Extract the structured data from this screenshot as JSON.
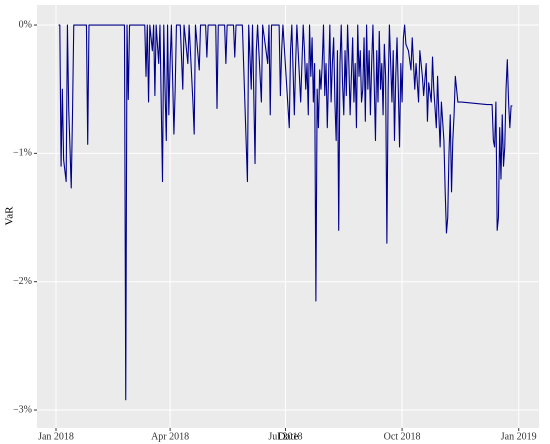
{
  "chart_data": {
    "type": "line",
    "x_label": "Date",
    "y_label": "VaR",
    "color": "#00008b",
    "grid": true,
    "xlim": [
      -15,
      381
    ],
    "xticks": [
      {
        "value": 0,
        "label": "Jan 2018"
      },
      {
        "value": 90,
        "label": "Apr 2018"
      },
      {
        "value": 181,
        "label": "Jul 2018"
      },
      {
        "value": 273,
        "label": "Oct 2018"
      },
      {
        "value": 365,
        "label": "Jan 2019"
      }
    ],
    "ylim": [
      -3.14,
      0.156
    ],
    "yticks": [
      {
        "value": -3,
        "label": "−3%"
      },
      {
        "value": -2,
        "label": "−2%"
      },
      {
        "value": -1,
        "label": "−1%"
      },
      {
        "value": 0,
        "label": "0%"
      }
    ],
    "x": [
      2,
      3,
      4,
      5,
      6,
      8,
      9,
      10,
      11,
      12,
      13,
      14,
      15,
      16,
      19,
      21,
      24,
      25,
      26,
      29,
      36,
      43,
      50,
      54,
      55,
      56,
      57,
      58,
      63,
      70,
      71,
      72,
      73,
      74,
      76,
      77,
      78,
      79,
      81,
      82,
      84,
      85,
      86,
      87,
      88,
      89,
      90,
      91,
      93,
      94,
      95,
      98,
      100,
      101,
      104,
      105,
      108,
      109,
      110,
      113,
      114,
      118,
      119,
      120,
      126,
      127,
      128,
      133,
      134,
      135,
      140,
      141,
      142,
      147,
      151,
      152,
      154,
      155,
      157,
      158,
      159,
      162,
      163,
      167,
      168,
      169,
      170,
      176,
      177,
      178,
      179,
      184,
      185,
      186,
      188,
      189,
      190,
      192,
      193,
      194,
      195,
      196,
      197,
      198,
      199,
      200,
      201,
      202,
      203,
      204,
      205,
      206,
      207,
      208,
      209,
      210,
      211,
      212,
      213,
      214,
      215,
      216,
      217,
      218,
      219,
      220,
      221,
      222,
      223,
      224,
      225,
      226,
      227,
      228,
      229,
      230,
      231,
      232,
      233,
      234,
      235,
      236,
      237,
      238,
      239,
      240,
      241,
      242,
      243,
      244,
      245,
      246,
      247,
      248,
      249,
      250,
      251,
      252,
      253,
      254,
      255,
      256,
      257,
      258,
      259,
      260,
      261,
      262,
      263,
      264,
      265,
      266,
      267,
      268,
      269,
      270,
      271,
      272,
      273,
      274,
      275,
      276,
      278,
      280,
      281,
      283,
      284,
      286,
      287,
      289,
      290,
      292,
      293,
      294,
      296,
      297,
      298,
      300,
      301,
      302,
      303,
      304,
      306,
      307,
      308,
      309,
      310,
      311,
      312,
      313,
      314,
      315,
      316,
      317,
      320,
      330,
      340,
      344,
      345,
      346,
      347,
      348,
      349,
      350,
      351,
      352,
      353,
      354,
      355,
      356,
      357,
      358,
      359,
      360
    ],
    "values": [
      0,
      0,
      -1.1,
      -0.5,
      -1.05,
      -1.22,
      0,
      -0.65,
      -0.95,
      -1.27,
      -0.7,
      0,
      0,
      0,
      0,
      0,
      0,
      -0.93,
      0,
      0,
      0,
      0,
      0,
      0,
      -2.92,
      0,
      -0.58,
      0,
      0,
      0,
      -0.4,
      0,
      -0.6,
      0,
      -0.2,
      0,
      -0.55,
      0,
      -0.3,
      0,
      -1.22,
      0,
      -0.5,
      -0.9,
      0,
      -0.7,
      -0.3,
      0,
      -0.85,
      -0.5,
      0,
      0,
      -0.5,
      0,
      -0.3,
      0,
      -0.6,
      -0.85,
      0,
      -0.35,
      0,
      0,
      -0.25,
      0,
      0,
      -0.65,
      0,
      0,
      -0.3,
      0,
      0,
      -0.25,
      0,
      0,
      -1.22,
      0,
      -0.5,
      0,
      -1.08,
      -0.2,
      0,
      -0.6,
      0,
      -0.3,
      0,
      -0.7,
      0,
      0,
      -0.55,
      -0.2,
      0,
      -0.8,
      -0.2,
      0,
      -0.7,
      -0.3,
      0,
      -0.4,
      -0.6,
      -0.3,
      0,
      -0.2,
      -0.5,
      -0.3,
      -0.7,
      0,
      -0.4,
      -0.1,
      -0.6,
      -0.3,
      -2.15,
      -0.5,
      -0.8,
      -0.35,
      -0.5,
      -0.3,
      0,
      -0.55,
      -0.3,
      -0.8,
      -0.4,
      0,
      -0.6,
      -0.3,
      -0.1,
      -0.6,
      -0.9,
      -0.2,
      -1.6,
      -0.3,
      0,
      -0.45,
      -0.7,
      -0.2,
      -0.55,
      0,
      -0.3,
      -0.7,
      -0.4,
      -0.1,
      -0.6,
      -0.3,
      -0.8,
      0,
      -0.4,
      -0.2,
      -0.6,
      -0.5,
      -0.1,
      -0.75,
      0,
      -0.5,
      -0.2,
      -0.7,
      -0.3,
      0,
      -0.45,
      -0.9,
      -0.2,
      -0.6,
      -0.05,
      -0.5,
      -0.3,
      -0.7,
      -0.15,
      -0.4,
      -1.7,
      -0.5,
      0,
      -0.3,
      -0.6,
      -0.2,
      -0.9,
      -0.4,
      -0.1,
      -0.5,
      -0.95,
      -0.3,
      -0.6,
      -0.1,
      0,
      -0.15,
      -0.2,
      -0.35,
      -0.1,
      -0.5,
      -0.3,
      -0.6,
      -0.2,
      -0.4,
      -0.55,
      -0.3,
      -0.75,
      -0.45,
      -0.6,
      -0.25,
      -0.5,
      -0.8,
      -0.4,
      -0.7,
      -0.95,
      -0.6,
      -0.9,
      -1.3,
      -1.62,
      -1.5,
      -1,
      -0.7,
      -1.3,
      -0.9,
      -0.7,
      -0.4,
      -0.5,
      -0.6,
      -0.6,
      -0.61,
      -0.62,
      -0.62,
      -0.9,
      -0.95,
      -0.6,
      -1.6,
      -1.5,
      -0.8,
      -1.2,
      -0.7,
      -1.1,
      -0.95,
      -0.5,
      -0.27,
      -0.6,
      -0.8,
      -0.63,
      -0.63
    ]
  }
}
